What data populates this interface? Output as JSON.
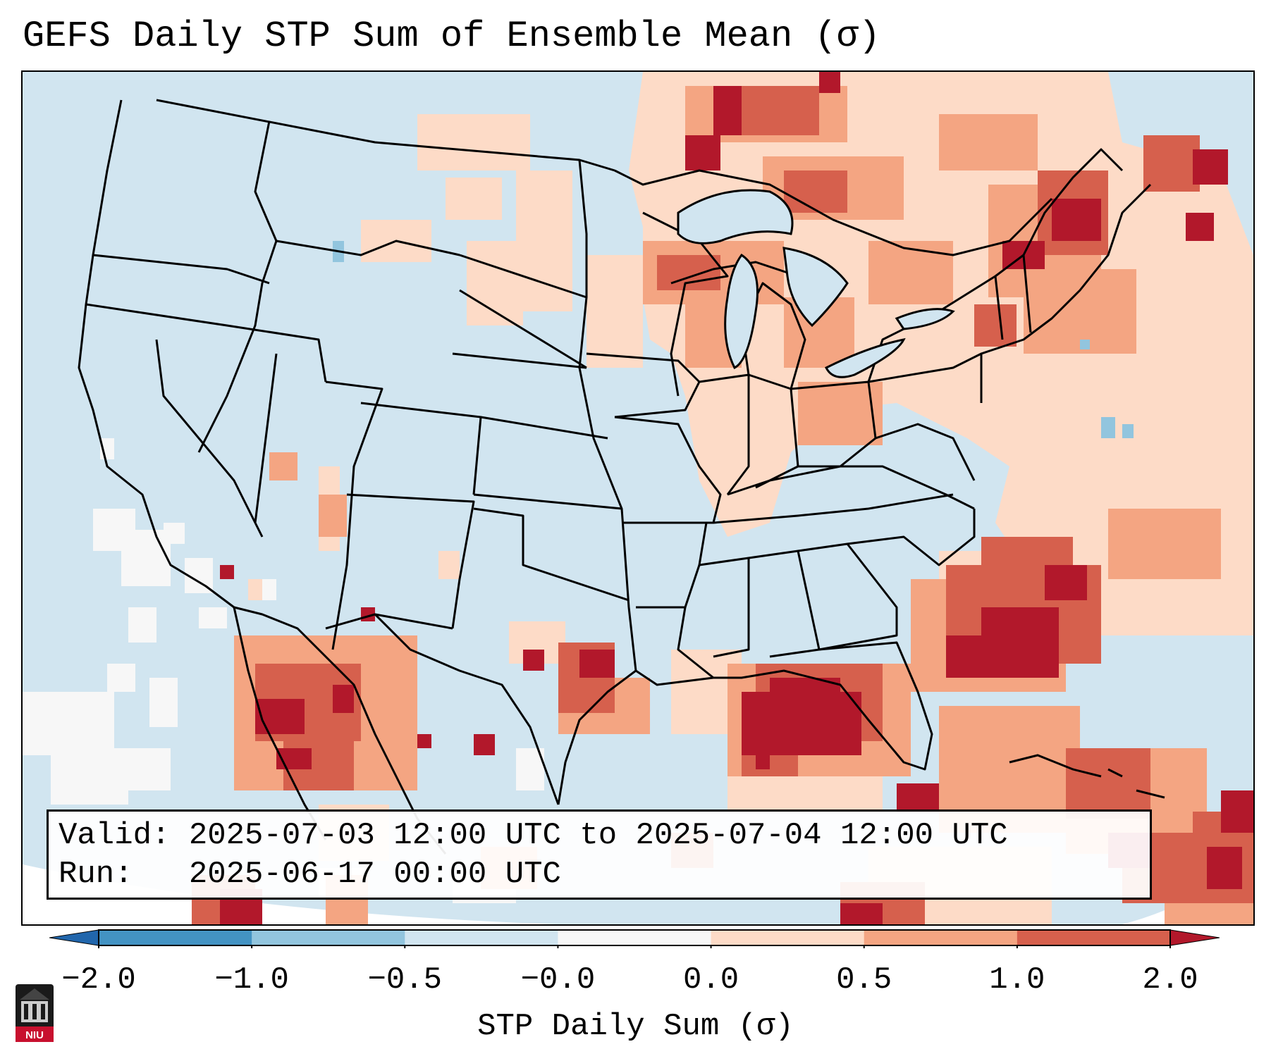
{
  "title": "GEFS Daily STP Sum of Ensemble Mean (σ)",
  "info": {
    "valid_label": "Valid:",
    "valid_text": "2025-07-03 12:00 UTC to 2025-07-04 12:00 UTC",
    "run_label": "Run:",
    "run_text": "2025-06-17 00:00 UTC"
  },
  "colorbar": {
    "label": "STP Daily Sum (σ)",
    "ticks": [
      "−2.0",
      "−1.0",
      "−0.5",
      "−0.0",
      "0.0",
      "0.5",
      "1.0",
      "2.0"
    ],
    "colors": [
      "#2166ac",
      "#4393c3",
      "#92c5de",
      "#d1e5f0",
      "#f7f7f7",
      "#fddbc7",
      "#f4a582",
      "#d6604d",
      "#b2182b"
    ]
  },
  "logo": {
    "text": "NIU",
    "icon": "university-building-icon"
  },
  "map": {
    "projection": "Lambert conformal conic",
    "region": "Continental United States",
    "background_color": "#d1e5f0",
    "border_color": "#000000",
    "icons": [
      "state-borders",
      "coastlines",
      "great-lakes"
    ]
  }
}
